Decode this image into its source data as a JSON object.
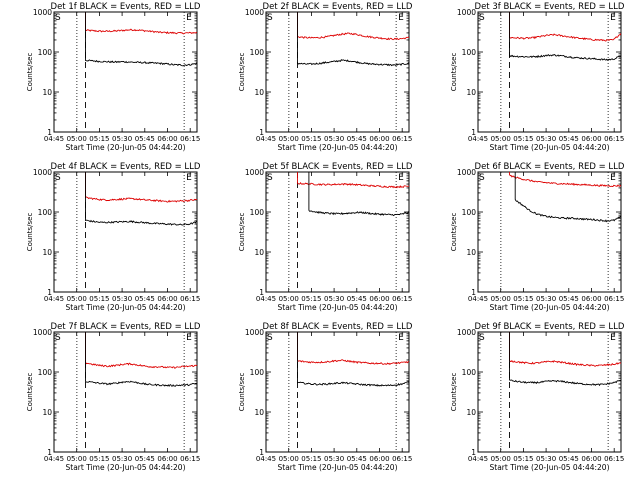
{
  "chart_data": [
    {
      "type": "line",
      "title": "Det 1f BLACK = Events, RED = LLD",
      "xlabel": "Start Time (20-Jun-05 04:44:20)",
      "ylabel": "Counts/sec",
      "ylim": [
        1,
        1000
      ],
      "yscale": "log",
      "xlim": [
        0,
        100
      ],
      "xticks": [
        "04:45",
        "05:00",
        "05:15",
        "05:30",
        "05:45",
        "06:00",
        "06:15"
      ],
      "yticks": [
        "1",
        "10",
        "100",
        "1000"
      ],
      "markers": {
        "S_label": "S",
        "E_label": "E",
        "dotted_at": [
          16,
          91
        ],
        "dashed_at": [
          22
        ]
      },
      "series": [
        {
          "color": "#dd0000",
          "start": 22,
          "values": [
            350,
            340,
            330,
            330,
            335,
            345,
            360,
            355,
            340,
            325,
            310,
            305,
            300,
            295,
            300,
            305
          ]
        },
        {
          "color": "#000000",
          "start": 22,
          "values": [
            62,
            60,
            58,
            57,
            56,
            57,
            56,
            55,
            54,
            53,
            52,
            50,
            48,
            47,
            48,
            52
          ]
        }
      ]
    },
    {
      "type": "line",
      "title": "Det 2f BLACK = Events, RED = LLD",
      "xlabel": "Start Time (20-Jun-05 04:44:20)",
      "ylabel": "Counts/sec",
      "ylim": [
        1,
        1000
      ],
      "yscale": "log",
      "xlim": [
        0,
        100
      ],
      "xticks": [
        "04:45",
        "05:00",
        "05:15",
        "05:30",
        "05:45",
        "06:00",
        "06:15"
      ],
      "yticks": [
        "1",
        "10",
        "100",
        "1000"
      ],
      "markers": {
        "S_label": "S",
        "E_label": "E",
        "dotted_at": [
          16,
          91
        ],
        "dashed_at": [
          22
        ]
      },
      "series": [
        {
          "color": "#dd0000",
          "start": 22,
          "values": [
            240,
            230,
            225,
            230,
            240,
            260,
            280,
            290,
            275,
            250,
            235,
            225,
            215,
            210,
            215,
            230
          ]
        },
        {
          "color": "#000000",
          "start": 22,
          "values": [
            52,
            50,
            50,
            52,
            55,
            58,
            62,
            60,
            56,
            52,
            50,
            49,
            48,
            47,
            49,
            52
          ]
        }
      ]
    },
    {
      "type": "line",
      "title": "Det 3f BLACK = Events, RED = LLD",
      "xlabel": "Start Time (20-Jun-05 04:44:20)",
      "ylabel": "Counts/sec",
      "ylim": [
        1,
        1000
      ],
      "yscale": "log",
      "xlim": [
        0,
        100
      ],
      "xticks": [
        "04:45",
        "05:00",
        "05:15",
        "05:30",
        "05:45",
        "06:00",
        "06:15"
      ],
      "yticks": [
        "1",
        "10",
        "100",
        "1000"
      ],
      "markers": {
        "S_label": "S",
        "E_label": "E",
        "dotted_at": [
          16,
          91
        ],
        "dashed_at": [
          22
        ]
      },
      "series": [
        {
          "color": "#dd0000",
          "start": 22,
          "values": [
            230,
            225,
            220,
            225,
            240,
            260,
            270,
            255,
            240,
            225,
            215,
            205,
            200,
            195,
            200,
            290
          ]
        },
        {
          "color": "#000000",
          "start": 22,
          "values": [
            80,
            78,
            76,
            76,
            78,
            82,
            84,
            80,
            76,
            72,
            70,
            68,
            66,
            64,
            66,
            80
          ]
        }
      ]
    },
    {
      "type": "line",
      "title": "Det 4f BLACK = Events, RED = LLD",
      "xlabel": "Start Time (20-Jun-05 04:44:20)",
      "ylabel": "Counts/sec",
      "ylim": [
        1,
        1000
      ],
      "yscale": "log",
      "xlim": [
        0,
        100
      ],
      "xticks": [
        "04:45",
        "05:00",
        "05:15",
        "05:30",
        "05:45",
        "06:00",
        "06:15"
      ],
      "yticks": [
        "1",
        "10",
        "100",
        "1000"
      ],
      "markers": {
        "S_label": "S",
        "E_label": "E",
        "dotted_at": [
          16,
          91
        ],
        "dashed_at": [
          22
        ]
      },
      "series": [
        {
          "color": "#dd0000",
          "start": 22,
          "values": [
            230,
            215,
            205,
            200,
            205,
            210,
            215,
            210,
            200,
            195,
            190,
            185,
            185,
            190,
            195,
            205
          ]
        },
        {
          "color": "#000000",
          "start": 22,
          "values": [
            62,
            58,
            55,
            55,
            56,
            57,
            58,
            56,
            54,
            52,
            51,
            50,
            49,
            48,
            50,
            56
          ]
        }
      ]
    },
    {
      "type": "line",
      "title": "Det 5f BLACK = Events, RED = LLD",
      "xlabel": "Start Time (20-Jun-05 04:44:20)",
      "ylabel": "Counts/sec",
      "ylim": [
        1,
        1000
      ],
      "yscale": "log",
      "xlim": [
        0,
        100
      ],
      "xticks": [
        "04:45",
        "05:00",
        "05:15",
        "05:30",
        "05:45",
        "06:00",
        "06:15"
      ],
      "yticks": [
        "1",
        "10",
        "100",
        "1000"
      ],
      "markers": {
        "S_label": "S",
        "E_label": "E",
        "dotted_at": [
          16,
          91
        ],
        "dashed_at": [
          22
        ]
      },
      "series": [
        {
          "color": "#dd0000",
          "start": 22,
          "values": [
            520,
            510,
            500,
            490,
            485,
            490,
            500,
            495,
            480,
            465,
            450,
            440,
            430,
            425,
            430,
            445
          ]
        },
        {
          "color": "#000000",
          "start": 30,
          "values": [
            110,
            100,
            95,
            92,
            90,
            92,
            95,
            98,
            95,
            90,
            88,
            86,
            85,
            88,
            98
          ]
        }
      ]
    },
    {
      "type": "line",
      "title": "Det 6f BLACK = Events, RED = LLD",
      "xlabel": "Start Time (20-Jun-05 04:44:20)",
      "ylabel": "Counts/sec",
      "ylim": [
        1,
        1000
      ],
      "yscale": "log",
      "xlim": [
        0,
        100
      ],
      "xticks": [
        "04:45",
        "05:00",
        "05:15",
        "05:30",
        "05:45",
        "06:00",
        "06:15"
      ],
      "yticks": [
        "1",
        "10",
        "100",
        "1000"
      ],
      "markers": {
        "S_label": "S",
        "E_label": "E",
        "dotted_at": [
          16,
          91
        ],
        "dashed_at": []
      },
      "series": [
        {
          "color": "#dd0000",
          "start": 22,
          "values": [
            820,
            720,
            650,
            600,
            560,
            540,
            520,
            510,
            500,
            490,
            480,
            470,
            460,
            455,
            450,
            455
          ]
        },
        {
          "color": "#000000",
          "start": 26,
          "values": [
            200,
            150,
            110,
            90,
            80,
            75,
            72,
            70,
            70,
            68,
            66,
            65,
            62,
            60,
            62,
            75
          ]
        }
      ]
    },
    {
      "type": "line",
      "title": "Det 7f BLACK = Events, RED = LLD",
      "xlabel": "Start Time (20-Jun-05 04:44:20)",
      "ylabel": "Counts/sec",
      "ylim": [
        1,
        1000
      ],
      "yscale": "log",
      "xlim": [
        0,
        100
      ],
      "xticks": [
        "04:45",
        "05:00",
        "05:15",
        "05:30",
        "05:45",
        "06:00",
        "06:15"
      ],
      "yticks": [
        "1",
        "10",
        "100",
        "1000"
      ],
      "markers": {
        "S_label": "S",
        "E_label": "E",
        "dotted_at": [
          16,
          91
        ],
        "dashed_at": [
          22
        ]
      },
      "series": [
        {
          "color": "#dd0000",
          "start": 22,
          "values": [
            170,
            155,
            145,
            140,
            145,
            155,
            160,
            150,
            140,
            135,
            135,
            130,
            130,
            135,
            140,
            145
          ]
        },
        {
          "color": "#000000",
          "start": 22,
          "values": [
            58,
            55,
            52,
            50,
            52,
            56,
            58,
            54,
            50,
            48,
            47,
            46,
            46,
            47,
            48,
            52
          ]
        }
      ]
    },
    {
      "type": "line",
      "title": "Det 8f BLACK = Events, RED = LLD",
      "xlabel": "Start Time (20-Jun-05 04:44:20)",
      "ylabel": "Counts/sec",
      "ylim": [
        1,
        1000
      ],
      "yscale": "log",
      "xlim": [
        0,
        100
      ],
      "xticks": [
        "04:45",
        "05:00",
        "05:15",
        "05:30",
        "05:45",
        "06:00",
        "06:15"
      ],
      "yticks": [
        "1",
        "10",
        "100",
        "1000"
      ],
      "markers": {
        "S_label": "S",
        "E_label": "E",
        "dotted_at": [
          16,
          91
        ],
        "dashed_at": [
          22
        ]
      },
      "series": [
        {
          "color": "#dd0000",
          "start": 22,
          "values": [
            190,
            180,
            175,
            175,
            180,
            190,
            195,
            185,
            175,
            170,
            165,
            165,
            160,
            165,
            170,
            180
          ]
        },
        {
          "color": "#000000",
          "start": 22,
          "values": [
            55,
            52,
            50,
            49,
            50,
            52,
            54,
            52,
            50,
            48,
            47,
            46,
            46,
            47,
            50,
            56
          ]
        }
      ]
    },
    {
      "type": "line",
      "title": "Det 9f BLACK = Events, RED = LLD",
      "xlabel": "Start Time (20-Jun-05 04:44:20)",
      "ylabel": "Counts/sec",
      "ylim": [
        1,
        1000
      ],
      "yscale": "log",
      "xlim": [
        0,
        100
      ],
      "xticks": [
        "04:45",
        "05:00",
        "05:15",
        "05:30",
        "05:45",
        "06:00",
        "06:15"
      ],
      "yticks": [
        "1",
        "10",
        "100",
        "1000"
      ],
      "markers": {
        "S_label": "S",
        "E_label": "E",
        "dotted_at": [
          16,
          91
        ],
        "dashed_at": [
          22
        ]
      },
      "series": [
        {
          "color": "#dd0000",
          "start": 22,
          "values": [
            190,
            180,
            170,
            165,
            170,
            180,
            185,
            175,
            165,
            155,
            150,
            145,
            145,
            150,
            155,
            170
          ]
        },
        {
          "color": "#000000",
          "start": 22,
          "values": [
            62,
            58,
            55,
            54,
            55,
            58,
            60,
            58,
            55,
            52,
            50,
            49,
            48,
            50,
            54,
            62
          ]
        }
      ]
    }
  ]
}
